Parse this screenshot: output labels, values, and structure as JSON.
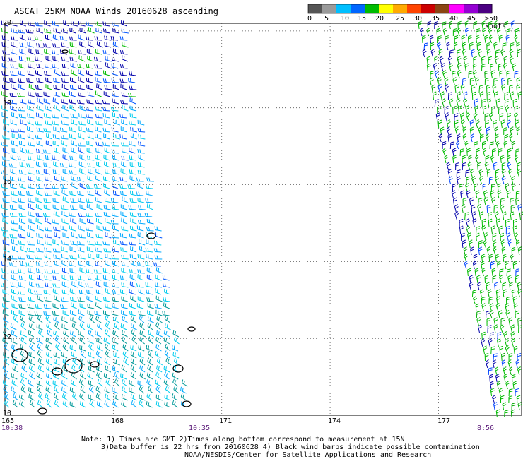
{
  "title": "ASCAT 25KM NOAA Winds 20160628 ascending",
  "legend": {
    "colors": [
      "#555555",
      "#9a9a9a",
      "#00bfff",
      "#0066ff",
      "#00bb00",
      "#ffff00",
      "#ffaa00",
      "#ff4400",
      "#cc0000",
      "#8b4513",
      "#ff00ff",
      "#9400d3",
      "#4b0082"
    ],
    "labels": [
      "0",
      "5",
      "10",
      "15",
      "20",
      "25",
      "30",
      "35",
      "40",
      "45",
      ">50 knots"
    ]
  },
  "axes": {
    "lat_labels": [
      "20",
      "18",
      "16",
      "14",
      "12",
      "10"
    ],
    "lon_labels": [
      "165",
      "168",
      "171",
      "174",
      "177"
    ],
    "time_labels": [
      "10:38",
      "10:35",
      "8:56"
    ]
  },
  "map": {
    "lon_range": [
      165,
      179.3
    ],
    "lat_range": [
      10,
      20.2
    ],
    "wind_swaths": [
      {
        "name": "west swath",
        "colors": [
          "#0000aa",
          "#0055ff",
          "#00aaff",
          "#00ccee",
          "#009999",
          "#00bb00"
        ]
      },
      {
        "name": "east swath",
        "colors": [
          "#00bb00",
          "#00aa00",
          "#0000aa",
          "#0044ff"
        ]
      }
    ]
  },
  "notes": {
    "line1": "Note: 1) Times are GMT 2)Times along bottom correspond to measurement at 15N",
    "line2": "3)Data buffer is 22 hrs from 20160628 4) Black wind barbs indicate possible contamination",
    "line3": "NOAA/NESDIS/Center for Satellite Applications and Research"
  }
}
